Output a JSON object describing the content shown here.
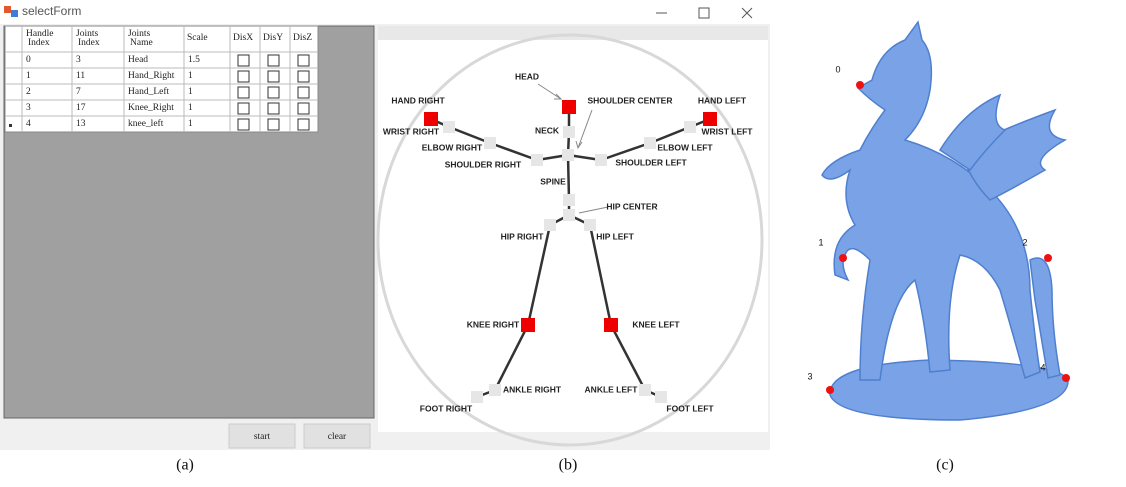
{
  "window": {
    "title": "selectForm"
  },
  "table": {
    "headers": [
      "Handle Index",
      "Joints Index",
      "Joints Name",
      "Scale",
      "DisX",
      "DisY",
      "DisZ"
    ],
    "rows": [
      [
        "0",
        "3",
        "Head",
        "1.5"
      ],
      [
        "1",
        "11",
        "Hand_Right",
        "1"
      ],
      [
        "2",
        "7",
        "Hand_Left",
        "1"
      ],
      [
        "3",
        "17",
        "Knee_Right",
        "1"
      ],
      [
        "4",
        "13",
        "knee_left",
        "1"
      ]
    ]
  },
  "buttons": [
    "start",
    "clear"
  ],
  "skeleton": {
    "labels": [
      "HEAD",
      "SHOULDER CENTER",
      "HAND RIGHT",
      "HAND LEFT",
      "NECK",
      "WRIST RIGHT",
      "WRIST LEFT",
      "ELBOW RIGHT",
      "ELBOW LEFT",
      "SHOULDER RIGHT",
      "SHOULDER LEFT",
      "SPINE",
      "HIP CENTER",
      "HIP RIGHT",
      "HIP LEFT",
      "KNEE RIGHT",
      "KNEE LEFT",
      "ANKLE RIGHT",
      "ANKLE LEFT",
      "FOOT RIGHT",
      "FOOT LEFT"
    ]
  },
  "model": {
    "handle_labels": [
      "0",
      "1",
      "2",
      "3",
      "4"
    ]
  },
  "captions": [
    "(a)",
    "(b)",
    "(c)"
  ]
}
